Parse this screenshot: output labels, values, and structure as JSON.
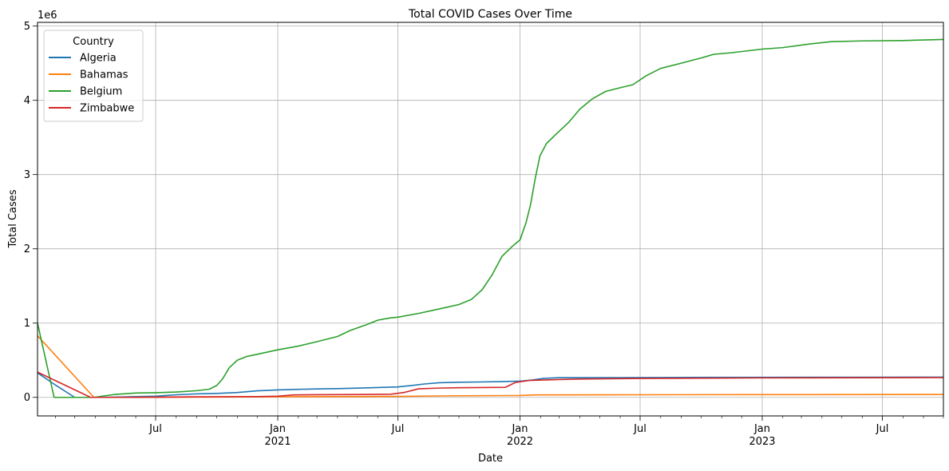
{
  "chart_data": {
    "type": "line",
    "title": "Total COVID Cases Over Time",
    "xlabel": "Date",
    "ylabel": "Total Cases",
    "y_offset_text": "1e6",
    "y_scale": 1000000,
    "xlim": [
      "2020-01-05",
      "2023-10-01"
    ],
    "ylim": [
      -250000,
      5050000
    ],
    "grid": true,
    "legend_title": "Country",
    "legend_position": "top-left",
    "x_ticks": [
      {
        "date": "2020-07-01",
        "label": "Jul",
        "sublabel": ""
      },
      {
        "date": "2021-01-01",
        "label": "Jan",
        "sublabel": "2021"
      },
      {
        "date": "2021-07-01",
        "label": "Jul",
        "sublabel": ""
      },
      {
        "date": "2022-01-01",
        "label": "Jan",
        "sublabel": "2022"
      },
      {
        "date": "2022-07-01",
        "label": "Jul",
        "sublabel": ""
      },
      {
        "date": "2023-01-01",
        "label": "Jan",
        "sublabel": "2023"
      },
      {
        "date": "2023-07-01",
        "label": "Jul",
        "sublabel": ""
      }
    ],
    "y_ticks": [
      {
        "value": 0,
        "label": "0"
      },
      {
        "value": 1000000,
        "label": "1"
      },
      {
        "value": 2000000,
        "label": "2"
      },
      {
        "value": 3000000,
        "label": "3"
      },
      {
        "value": 4000000,
        "label": "4"
      },
      {
        "value": 5000000,
        "label": "5"
      }
    ],
    "series": [
      {
        "name": "Algeria",
        "color": "#1f77b4",
        "points": [
          [
            "2020-01-05",
            330000
          ],
          [
            "2020-02-02",
            160000
          ],
          [
            "2020-03-01",
            0
          ],
          [
            "2020-04-01",
            0
          ],
          [
            "2020-05-01",
            3000
          ],
          [
            "2020-06-01",
            10000
          ],
          [
            "2020-07-01",
            15000
          ],
          [
            "2020-08-01",
            35000
          ],
          [
            "2020-09-01",
            47000
          ],
          [
            "2020-10-01",
            53000
          ],
          [
            "2020-11-01",
            65000
          ],
          [
            "2020-12-01",
            88000
          ],
          [
            "2021-01-01",
            100000
          ],
          [
            "2021-02-01",
            108000
          ],
          [
            "2021-03-01",
            114000
          ],
          [
            "2021-04-01",
            118000
          ],
          [
            "2021-05-01",
            124000
          ],
          [
            "2021-06-01",
            132000
          ],
          [
            "2021-07-01",
            140000
          ],
          [
            "2021-07-20",
            158000
          ],
          [
            "2021-08-10",
            180000
          ],
          [
            "2021-09-01",
            197000
          ],
          [
            "2021-10-01",
            203000
          ],
          [
            "2021-11-01",
            207000
          ],
          [
            "2021-12-01",
            212000
          ],
          [
            "2022-01-01",
            218000
          ],
          [
            "2022-01-20",
            235000
          ],
          [
            "2022-02-05",
            255000
          ],
          [
            "2022-03-01",
            265000
          ],
          [
            "2022-06-01",
            266000
          ],
          [
            "2022-12-01",
            270000
          ],
          [
            "2023-06-01",
            271000
          ],
          [
            "2023-10-01",
            272000
          ]
        ]
      },
      {
        "name": "Bahamas",
        "color": "#ff7f0e",
        "points": [
          [
            "2020-01-05",
            830000
          ],
          [
            "2020-03-30",
            0
          ],
          [
            "2020-06-01",
            200
          ],
          [
            "2020-08-01",
            1500
          ],
          [
            "2020-10-01",
            5000
          ],
          [
            "2021-01-01",
            8000
          ],
          [
            "2021-04-01",
            10000
          ],
          [
            "2021-07-01",
            13000
          ],
          [
            "2021-09-15",
            20000
          ],
          [
            "2022-01-01",
            25000
          ],
          [
            "2022-01-25",
            33000
          ],
          [
            "2022-07-01",
            35000
          ],
          [
            "2023-01-01",
            37000
          ],
          [
            "2023-10-01",
            38000
          ]
        ]
      },
      {
        "name": "Belgium",
        "color": "#2ca02c",
        "points": [
          [
            "2020-01-05",
            1000000
          ],
          [
            "2020-01-30",
            0
          ],
          [
            "2020-03-30",
            0
          ],
          [
            "2020-04-15",
            20000
          ],
          [
            "2020-05-01",
            40000
          ],
          [
            "2020-06-01",
            58000
          ],
          [
            "2020-07-01",
            63000
          ],
          [
            "2020-08-01",
            72000
          ],
          [
            "2020-09-01",
            90000
          ],
          [
            "2020-09-20",
            110000
          ],
          [
            "2020-10-01",
            160000
          ],
          [
            "2020-10-10",
            250000
          ],
          [
            "2020-10-20",
            400000
          ],
          [
            "2020-11-01",
            500000
          ],
          [
            "2020-11-15",
            550000
          ],
          [
            "2020-12-01",
            580000
          ],
          [
            "2021-01-01",
            640000
          ],
          [
            "2021-02-01",
            690000
          ],
          [
            "2021-03-01",
            750000
          ],
          [
            "2021-04-01",
            820000
          ],
          [
            "2021-04-20",
            900000
          ],
          [
            "2021-05-15",
            980000
          ],
          [
            "2021-06-01",
            1040000
          ],
          [
            "2021-06-20",
            1070000
          ],
          [
            "2021-07-01",
            1080000
          ],
          [
            "2021-08-01",
            1130000
          ],
          [
            "2021-09-01",
            1190000
          ],
          [
            "2021-10-01",
            1250000
          ],
          [
            "2021-10-20",
            1320000
          ],
          [
            "2021-11-05",
            1450000
          ],
          [
            "2021-11-20",
            1650000
          ],
          [
            "2021-12-05",
            1900000
          ],
          [
            "2021-12-20",
            2030000
          ],
          [
            "2022-01-01",
            2120000
          ],
          [
            "2022-01-10",
            2350000
          ],
          [
            "2022-01-17",
            2600000
          ],
          [
            "2022-01-24",
            2950000
          ],
          [
            "2022-01-31",
            3250000
          ],
          [
            "2022-02-10",
            3420000
          ],
          [
            "2022-02-25",
            3550000
          ],
          [
            "2022-03-15",
            3700000
          ],
          [
            "2022-04-01",
            3880000
          ],
          [
            "2022-04-20",
            4020000
          ],
          [
            "2022-05-10",
            4120000
          ],
          [
            "2022-06-01",
            4170000
          ],
          [
            "2022-06-20",
            4210000
          ],
          [
            "2022-07-10",
            4330000
          ],
          [
            "2022-08-01",
            4430000
          ],
          [
            "2022-09-01",
            4500000
          ],
          [
            "2022-10-01",
            4570000
          ],
          [
            "2022-10-20",
            4620000
          ],
          [
            "2022-11-15",
            4640000
          ],
          [
            "2023-01-01",
            4690000
          ],
          [
            "2023-02-01",
            4710000
          ],
          [
            "2023-03-15",
            4760000
          ],
          [
            "2023-04-15",
            4790000
          ],
          [
            "2023-06-01",
            4800000
          ],
          [
            "2023-08-01",
            4805000
          ],
          [
            "2023-10-01",
            4820000
          ]
        ]
      },
      {
        "name": "Zimbabwe",
        "color": "#d62728",
        "points": [
          [
            "2020-01-05",
            340000
          ],
          [
            "2020-03-25",
            0
          ],
          [
            "2020-06-01",
            500
          ],
          [
            "2020-09-01",
            7500
          ],
          [
            "2020-12-01",
            10000
          ],
          [
            "2021-01-01",
            15000
          ],
          [
            "2021-01-25",
            33000
          ],
          [
            "2021-03-01",
            36000
          ],
          [
            "2021-05-01",
            38000
          ],
          [
            "2021-06-20",
            42000
          ],
          [
            "2021-07-10",
            65000
          ],
          [
            "2021-08-01",
            115000
          ],
          [
            "2021-09-01",
            125000
          ],
          [
            "2021-10-01",
            130000
          ],
          [
            "2021-12-10",
            135000
          ],
          [
            "2021-12-25",
            200000
          ],
          [
            "2022-01-15",
            228000
          ],
          [
            "2022-03-01",
            240000
          ],
          [
            "2022-04-01",
            246000
          ],
          [
            "2022-07-01",
            255000
          ],
          [
            "2023-01-01",
            262000
          ],
          [
            "2023-10-01",
            266000
          ]
        ]
      }
    ]
  }
}
